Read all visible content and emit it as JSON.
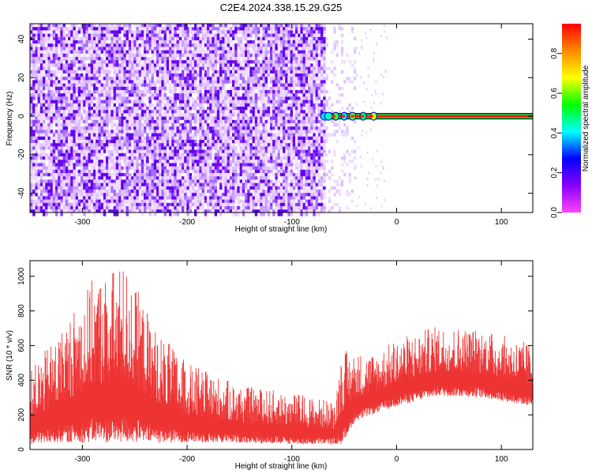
{
  "title": "C2E4.2024.338.15.29.G25",
  "chart_data": [
    {
      "type": "heatmap",
      "xlabel": "Height of straight line (km)",
      "ylabel": "Frequency (Hz)",
      "xlim": [
        -350,
        130
      ],
      "ylim": [
        -50,
        48
      ],
      "x_ticks": [
        -300,
        -200,
        -100,
        0,
        100
      ],
      "y_ticks": [
        -40,
        -20,
        0,
        20,
        40
      ],
      "colorbar": {
        "label": "Normalized spectral amplitude",
        "range": [
          0,
          0.95
        ],
        "ticks": [
          0.0,
          0.2,
          0.4,
          0.6,
          0.8
        ],
        "colors": [
          "#ff44ff",
          "#8800ff",
          "#0000ff",
          "#00ffff",
          "#00ff00",
          "#ffff00",
          "#ff8800",
          "#ff0000"
        ]
      },
      "regions": [
        {
          "name": "broadband noise",
          "x": [
            -350,
            -70
          ],
          "y": [
            -50,
            48
          ],
          "amplitude": 0.1,
          "color": "#7a00ff"
        },
        {
          "name": "sparse noise",
          "x": [
            -70,
            -40
          ],
          "y": [
            -50,
            48
          ],
          "amplitude": 0.03
        },
        {
          "name": "narrow tone",
          "x": [
            -70,
            130
          ],
          "y_center": 0,
          "amplitude": 0.9
        }
      ],
      "grid": false
    },
    {
      "type": "line",
      "xlabel": "Height of straight line (km)",
      "ylabel": "SNR (10 * v/v)",
      "xlim": [
        -350,
        130
      ],
      "ylim": [
        0,
        1090
      ],
      "x_ticks": [
        -300,
        -200,
        -100,
        0,
        100
      ],
      "y_ticks": [
        0,
        200,
        400,
        600,
        800,
        1000
      ],
      "color": "#ee3333",
      "envelope": [
        {
          "x": -350,
          "low": 30,
          "high": 450
        },
        {
          "x": -320,
          "low": 40,
          "high": 700
        },
        {
          "x": -290,
          "low": 40,
          "high": 990
        },
        {
          "x": -260,
          "low": 40,
          "high": 1080
        },
        {
          "x": -230,
          "low": 40,
          "high": 700
        },
        {
          "x": -200,
          "low": 40,
          "high": 500
        },
        {
          "x": -150,
          "low": 40,
          "high": 370
        },
        {
          "x": -100,
          "low": 30,
          "high": 330
        },
        {
          "x": -60,
          "low": 30,
          "high": 280
        },
        {
          "x": -52,
          "low": 30,
          "high": 580
        },
        {
          "x": -40,
          "low": 160,
          "high": 560
        },
        {
          "x": -20,
          "low": 210,
          "high": 560
        },
        {
          "x": 0,
          "low": 250,
          "high": 640
        },
        {
          "x": 40,
          "low": 310,
          "high": 720
        },
        {
          "x": 80,
          "low": 300,
          "high": 700
        },
        {
          "x": 130,
          "low": 250,
          "high": 610
        }
      ],
      "grid": false
    }
  ]
}
